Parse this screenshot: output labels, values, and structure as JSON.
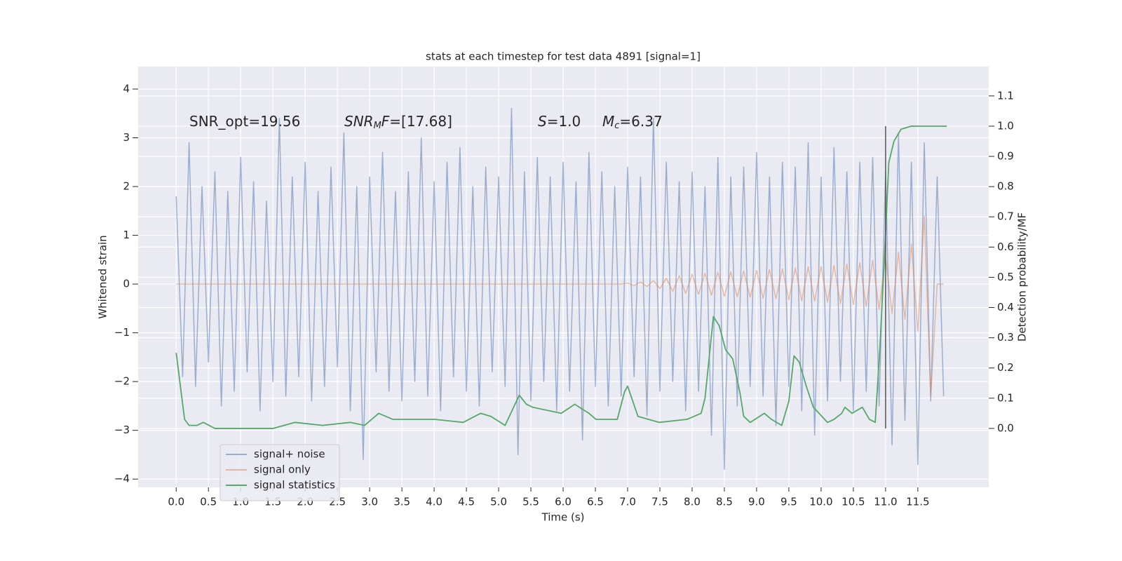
{
  "chart_data": {
    "type": "line",
    "title": "stats at each timestep for test data 4891 [signal=1]",
    "xlabel": "Time (s)",
    "ylabel": "Whitened strain",
    "y2label": "Detection probability/MF",
    "xlim": [
      -0.59,
      12.6
    ],
    "ylim": [
      -4.17,
      4.46
    ],
    "y2lim": [
      -0.195,
      1.197
    ],
    "xticks": [
      {
        "value": 0,
        "label": "0.0"
      },
      {
        "value": 0.5,
        "label": "0.5"
      },
      {
        "value": 1,
        "label": "1.0"
      },
      {
        "value": 1.5,
        "label": "1.5"
      },
      {
        "value": 2,
        "label": "2.0"
      },
      {
        "value": 2.5,
        "label": "2.5"
      },
      {
        "value": 3,
        "label": "3.0"
      },
      {
        "value": 3.5,
        "label": "3.5"
      },
      {
        "value": 4,
        "label": "4.0"
      },
      {
        "value": 4.5,
        "label": "4.5"
      },
      {
        "value": 5,
        "label": "5.0"
      },
      {
        "value": 5.5,
        "label": "5.5"
      },
      {
        "value": 6,
        "label": "6.0"
      },
      {
        "value": 6.5,
        "label": "6.5"
      },
      {
        "value": 7,
        "label": "7.0"
      },
      {
        "value": 7.5,
        "label": "7.5"
      },
      {
        "value": 8,
        "label": "8.0"
      },
      {
        "value": 8.5,
        "label": "8.5"
      },
      {
        "value": 9,
        "label": "9.0"
      },
      {
        "value": 9.5,
        "label": "9.5"
      },
      {
        "value": 10,
        "label": "10.0"
      },
      {
        "value": 10.5,
        "label": "10.5"
      },
      {
        "value": 11,
        "label": "11.0"
      },
      {
        "value": 11.5,
        "label": "11.5"
      }
    ],
    "yticks": [
      {
        "value": -4,
        "label": "−4"
      },
      {
        "value": -3,
        "label": "−3"
      },
      {
        "value": -2,
        "label": "−2"
      },
      {
        "value": -1,
        "label": "−1"
      },
      0,
      1,
      2,
      3,
      4
    ],
    "y2ticks": [
      {
        "value": 0,
        "label": "0.0"
      },
      {
        "value": 0.1,
        "label": "0.1"
      },
      {
        "value": 0.2,
        "label": "0.2"
      },
      {
        "value": 0.3,
        "label": "0.3"
      },
      {
        "value": 0.4,
        "label": "0.4"
      },
      {
        "value": 0.5,
        "label": "0.5"
      },
      {
        "value": 0.6,
        "label": "0.6"
      },
      {
        "value": 0.7,
        "label": "0.7"
      },
      {
        "value": 0.8,
        "label": "0.8"
      },
      {
        "value": 0.9,
        "label": "0.9"
      },
      {
        "value": 1,
        "label": "1.0"
      },
      {
        "value": 1.1,
        "label": "1.1"
      }
    ],
    "grid": true,
    "legend": "lower left",
    "annotations": [
      [
        {
          "text": "SNR_opt=19.56",
          "style": "normal"
        }
      ],
      [
        {
          "text": "SNR",
          "style": "italic"
        },
        {
          "text": "M",
          "style": "sub"
        },
        {
          "text": "F",
          "style": "italic"
        },
        {
          "text": "=[17.68]",
          "style": "normal"
        }
      ],
      [
        {
          "text": "S",
          "style": "italic"
        },
        {
          "text": "=1.0",
          "style": "normal"
        }
      ],
      [
        {
          "text": "M",
          "style": "italic"
        },
        {
          "text": "c",
          "style": "sub"
        },
        {
          "text": "=6.37",
          "style": "normal"
        }
      ]
    ],
    "series": [
      {
        "name": "signal+ noise",
        "color": "#4c72b0",
        "alpha": 0.5,
        "x": [
          0,
          0.1,
          0.2,
          0.3,
          0.4,
          0.5,
          0.6,
          0.7,
          0.8,
          0.9,
          1,
          1.1,
          1.2,
          1.3,
          1.4,
          1.5,
          1.6,
          1.7,
          1.8,
          1.9,
          2,
          2.1,
          2.2,
          2.3,
          2.4,
          2.5,
          2.6,
          2.7,
          2.8,
          2.9,
          3,
          3.1,
          3.2,
          3.3,
          3.4,
          3.5,
          3.6,
          3.7,
          3.8,
          3.9,
          4,
          4.1,
          4.2,
          4.3,
          4.4,
          4.5,
          4.6,
          4.7,
          4.8,
          4.9,
          5,
          5.1,
          5.2,
          5.3,
          5.4,
          5.5,
          5.6,
          5.7,
          5.8,
          5.9,
          6,
          6.1,
          6.2,
          6.3,
          6.4,
          6.5,
          6.6,
          6.7,
          6.8,
          6.9,
          7,
          7.1,
          7.2,
          7.3,
          7.4,
          7.5,
          7.6,
          7.7,
          7.8,
          7.9,
          8,
          8.1,
          8.2,
          8.3,
          8.4,
          8.5,
          8.6,
          8.7,
          8.8,
          8.9,
          9,
          9.1,
          9.2,
          9.3,
          9.4,
          9.5,
          9.6,
          9.7,
          9.8,
          9.9,
          10,
          10.1,
          10.2,
          10.3,
          10.4,
          10.5,
          10.6,
          10.7,
          10.8,
          10.9,
          11,
          11.1,
          11.2,
          11.3,
          11.4,
          11.5,
          11.6,
          11.7,
          11.8,
          11.9
        ],
        "values": [
          1.8,
          -1.9,
          2.9,
          -2.1,
          2.0,
          -1.6,
          2.3,
          -2.5,
          1.9,
          -2.2,
          2.6,
          -1.8,
          2.1,
          -2.6,
          1.7,
          -2.0,
          3.4,
          -2.3,
          2.2,
          -1.9,
          2.5,
          -2.4,
          1.9,
          -2.1,
          2.4,
          -1.7,
          3.1,
          -2.6,
          2.0,
          -3.6,
          2.2,
          -1.8,
          2.7,
          -2.2,
          1.9,
          -2.4,
          2.3,
          -2.0,
          3.0,
          -2.3,
          2.1,
          -2.6,
          2.5,
          -1.9,
          2.8,
          -2.2,
          2.0,
          -2.5,
          2.4,
          -1.8,
          2.2,
          -2.1,
          3.6,
          -3.5,
          2.3,
          -2.4,
          2.6,
          -2.0,
          2.2,
          -2.6,
          2.5,
          -2.2,
          2.1,
          -3.2,
          2.7,
          -2.1,
          2.3,
          -2.5,
          2.0,
          -2.3,
          2.4,
          -1.9,
          2.2,
          -2.7,
          3.4,
          -2.2,
          2.5,
          -2.0,
          2.1,
          -2.6,
          2.3,
          -2.2,
          2.0,
          -3.1,
          2.6,
          -3.8,
          2.2,
          -2.5,
          2.4,
          -2.1,
          2.7,
          -2.3,
          2.2,
          -2.9,
          2.5,
          -2.1,
          2.4,
          -2.6,
          2.9,
          -3.1,
          2.2,
          -2.4,
          2.8,
          -2.0,
          2.3,
          -2.6,
          2.5,
          -2.2,
          2.6,
          -2.5,
          2.3,
          -3.3,
          3.1,
          -2.8,
          2.5,
          -3.7,
          2.9,
          -2.4,
          2.2,
          -2.3
        ]
      },
      {
        "name": "signal only",
        "color": "#dd8452",
        "alpha": 0.5,
        "x": [
          0,
          6.9,
          7,
          7.1,
          7.2,
          7.3,
          7.4,
          7.5,
          7.6,
          7.7,
          7.8,
          7.9,
          8,
          8.1,
          8.2,
          8.3,
          8.4,
          8.5,
          8.6,
          8.7,
          8.8,
          8.9,
          9,
          9.1,
          9.2,
          9.3,
          9.4,
          9.5,
          9.6,
          9.7,
          9.8,
          9.9,
          10,
          10.1,
          10.2,
          10.3,
          10.4,
          10.5,
          10.6,
          10.7,
          10.8,
          10.9,
          11,
          11.1,
          11.2,
          11.3,
          11.4,
          11.5,
          11.6,
          11.7,
          11.8,
          11.9
        ],
        "values": [
          0,
          0,
          0.02,
          -0.03,
          0.04,
          -0.05,
          0.07,
          -0.09,
          0.12,
          -0.15,
          0.17,
          -0.19,
          0.2,
          -0.21,
          0.22,
          -0.23,
          0.24,
          -0.25,
          0.25,
          -0.26,
          0.27,
          -0.27,
          0.28,
          -0.29,
          0.3,
          -0.3,
          0.31,
          -0.32,
          0.33,
          -0.34,
          0.35,
          -0.35,
          0.36,
          -0.37,
          0.38,
          -0.4,
          0.41,
          -0.42,
          0.44,
          -0.46,
          0.49,
          -0.52,
          0.55,
          -0.6,
          0.65,
          -0.72,
          0.82,
          -0.97,
          1.4,
          -2.3,
          0,
          0
        ]
      },
      {
        "name": "signal statistics",
        "color": "#55a868",
        "alpha": 1,
        "axis": "y2",
        "x": [
          0,
          0.13,
          0.2,
          0.32,
          0.42,
          0.6,
          1.0,
          1.5,
          1.84,
          2.27,
          2.7,
          2.92,
          3.14,
          3.36,
          3.58,
          3.79,
          4.01,
          4.45,
          4.72,
          4.88,
          5.1,
          5.32,
          5.43,
          5.53,
          5.97,
          6.18,
          6.4,
          6.51,
          6.84,
          6.95,
          7.0,
          7.16,
          7.49,
          7.92,
          8.14,
          8.2,
          8.33,
          8.42,
          8.52,
          8.63,
          8.74,
          8.8,
          8.9,
          9.12,
          9.23,
          9.39,
          9.5,
          9.58,
          9.66,
          9.77,
          9.88,
          10.1,
          10.2,
          10.32,
          10.37,
          10.48,
          10.64,
          10.75,
          10.84,
          10.91,
          10.99,
          11.05,
          11.13,
          11.24,
          11.4,
          11.95
        ],
        "values": [
          0.25,
          0.03,
          0.01,
          0.01,
          0.02,
          0.0,
          0.0,
          0.0,
          0.02,
          0.01,
          0.02,
          0.01,
          0.05,
          0.03,
          0.03,
          0.03,
          0.03,
          0.02,
          0.05,
          0.04,
          0.01,
          0.11,
          0.08,
          0.07,
          0.05,
          0.08,
          0.05,
          0.03,
          0.03,
          0.12,
          0.14,
          0.04,
          0.02,
          0.03,
          0.05,
          0.1,
          0.37,
          0.34,
          0.26,
          0.23,
          0.12,
          0.04,
          0.02,
          0.05,
          0.03,
          0.01,
          0.09,
          0.24,
          0.22,
          0.14,
          0.07,
          0.02,
          0.03,
          0.05,
          0.07,
          0.05,
          0.07,
          0.03,
          0.02,
          0.26,
          0.6,
          0.88,
          0.95,
          0.99,
          1.0,
          1.0
        ]
      }
    ],
    "vlines": [
      {
        "x": 11.0,
        "ymin": 0,
        "ymax": 1,
        "axis": "y2",
        "color": "#555555"
      }
    ]
  }
}
